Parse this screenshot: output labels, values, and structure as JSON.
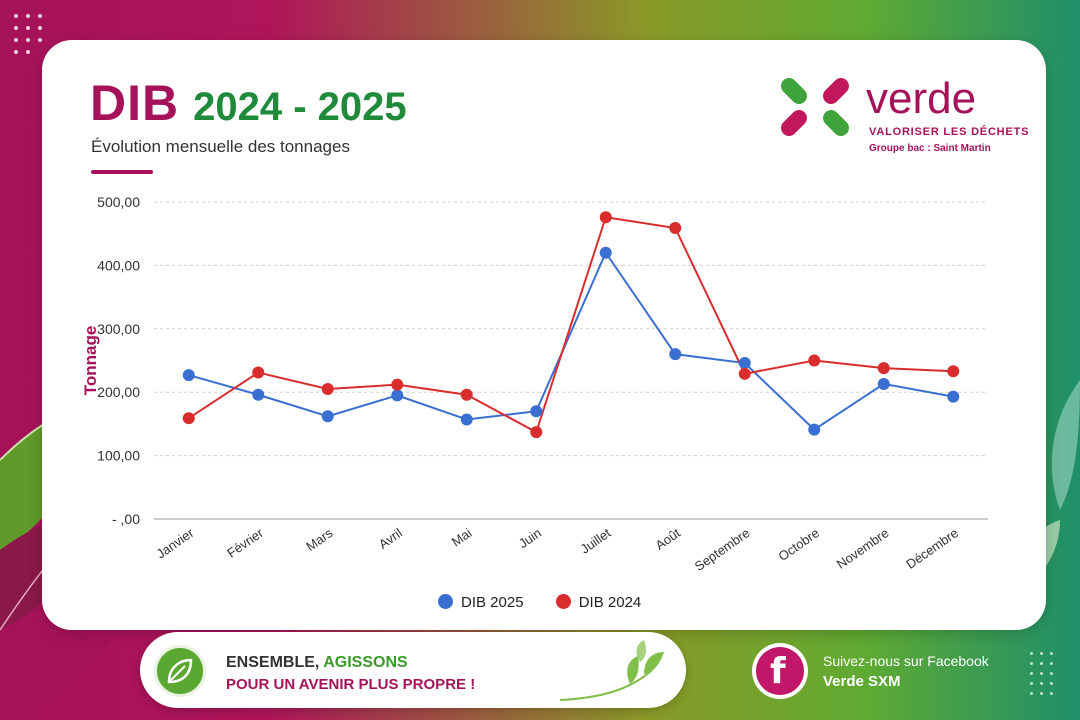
{
  "header": {
    "title_main": "DIB",
    "title_years": "2024 - 2025",
    "subtitle": "Évolution mensuelle des tonnages"
  },
  "brand": {
    "name": "verde",
    "tagline": "VALORISER LES DÉCHETS",
    "subline": "Groupe bac : Saint Martin",
    "icon": "verde-x-logo-icon"
  },
  "chart_data": {
    "type": "line",
    "title": "",
    "xlabel": "",
    "ylabel": "Tonnage",
    "categories": [
      "Janvier",
      "Février",
      "Mars",
      "Avril",
      "Mai",
      "Juin",
      "Juillet",
      "Août",
      "Septembre",
      "Octobre",
      "Novembre",
      "Décembre"
    ],
    "ylim": [
      0,
      500
    ],
    "yticks": [
      0,
      100,
      200,
      300,
      400,
      500
    ],
    "ytick_labels": [
      "- ,00",
      "100,00",
      "200,00",
      "300,00",
      "400,00",
      "500,00"
    ],
    "grid": true,
    "legend_position": "bottom",
    "series": [
      {
        "name": "DIB 2025",
        "color": "#3a6fd1",
        "values": [
          227,
          196,
          162,
          195,
          157,
          170,
          420,
          260,
          246,
          141,
          213,
          193
        ]
      },
      {
        "name": "DIB 2024",
        "color": "#d92d2d",
        "values": [
          159,
          231,
          205,
          212,
          196,
          137,
          476,
          459,
          229,
          250,
          238,
          233
        ]
      }
    ]
  },
  "footer": {
    "slogan_part1": "ENSEMBLE, ",
    "slogan_part1_green": "AGISSONS",
    "slogan_line2": "POUR UN AVENIR PLUS PROPRE !",
    "facebook_label": "Suivez-nous sur Facebook",
    "facebook_name": "Verde SXM",
    "facebook_icon": "facebook-icon",
    "leaf_icon": "leaf-icon"
  },
  "colors": {
    "magenta": "#a5125a",
    "green": "#1f8a3a",
    "blue_series": "#3a6fd1",
    "red_series": "#d92d2d"
  }
}
